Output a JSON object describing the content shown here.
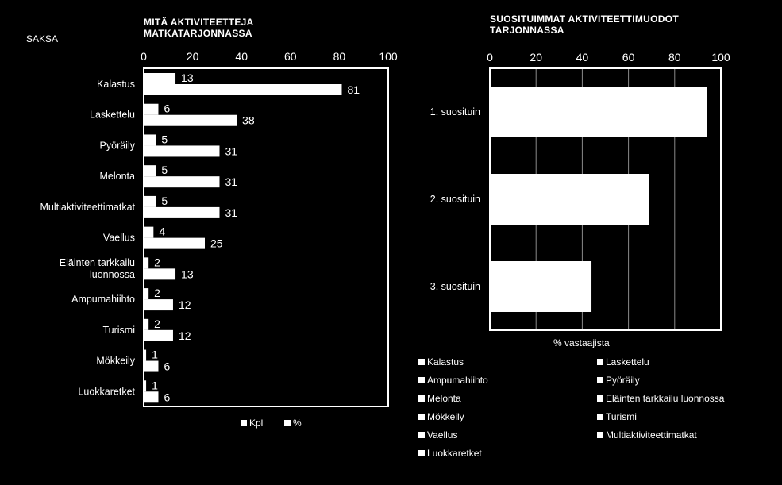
{
  "country": "SAKSA",
  "chart_data": [
    {
      "type": "bar",
      "orientation": "horizontal",
      "title": "MITÄ AKTIVITEETTEJA MATKATARJONNASSA",
      "title_lines": [
        "MITÄ AKTIVITEETTEJA",
        "MATKATARJONNASSA"
      ],
      "categories": [
        "Kalastus",
        "Laskettelu",
        "Pyöräily",
        "Melonta",
        "Multiaktiviteettimatkat",
        "Vaellus",
        "Eläinten tarkkailu luonnossa",
        "Ampumahiihto",
        "Turismi",
        "Mökkeily",
        "Luokkaretket"
      ],
      "category_lines": [
        [
          "Kalastus"
        ],
        [
          "Laskettelu"
        ],
        [
          "Pyöräily"
        ],
        [
          "Melonta"
        ],
        [
          "Multiaktiviteettimatkat"
        ],
        [
          "Vaellus"
        ],
        [
          "Eläinten tarkkailu",
          "luonnossa"
        ],
        [
          "Ampumahiihto"
        ],
        [
          "Turismi"
        ],
        [
          "Mökkeily"
        ],
        [
          "Luokkaretket"
        ]
      ],
      "series": [
        {
          "name": "Kpl",
          "values": [
            13,
            6,
            5,
            5,
            5,
            4,
            2,
            2,
            2,
            1,
            1
          ]
        },
        {
          "name": "%",
          "values": [
            81,
            38,
            31,
            31,
            31,
            25,
            13,
            12,
            12,
            6,
            6
          ]
        }
      ],
      "xlim": [
        0,
        100
      ],
      "xticks": [
        0,
        20,
        40,
        60,
        80,
        100
      ],
      "axis_position": "top",
      "legend_position": "bottom"
    },
    {
      "type": "bar",
      "orientation": "horizontal",
      "title": "SUOSITUIMMAT AKTIVITEETTIMUODOT TARJONNASSA",
      "title_lines": [
        "SUOSITUIMMAT AKTIVITEETTIMUODOT",
        "TARJONNASSA"
      ],
      "categories": [
        "1. suosituin",
        "2. suosituin",
        "3. suosituin"
      ],
      "values": [
        94,
        69,
        44
      ],
      "xlabel": "% vastaajista",
      "xlim": [
        0,
        100
      ],
      "xticks": [
        0,
        20,
        40,
        60,
        80,
        100
      ],
      "grid": true,
      "axis_position": "top",
      "legend_position": "bottom",
      "legend": [
        "Kalastus",
        "Laskettelu",
        "Ampumahiihto",
        "Pyöräily",
        "Melonta",
        "Eläinten tarkkailu luonnossa",
        "Mökkeily",
        "Turismi",
        "Vaellus",
        "Multiaktiviteettimatkat",
        "Luokkaretket"
      ]
    }
  ]
}
